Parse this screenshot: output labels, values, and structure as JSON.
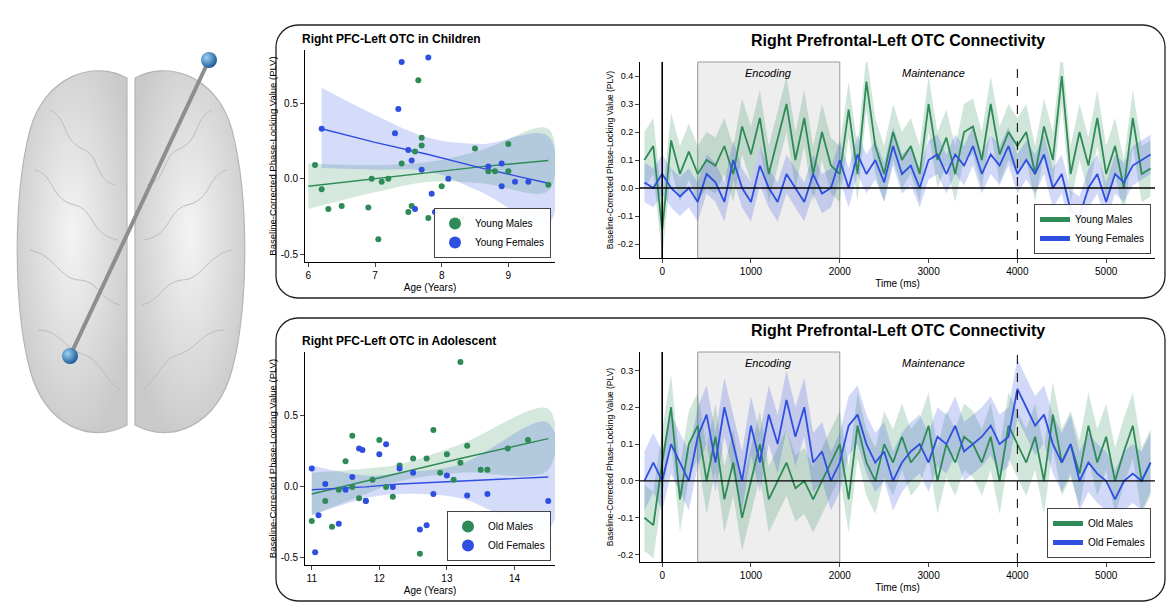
{
  "chart_data": [
    {
      "type": "scatter",
      "title": "Right PFC-Left OTC in Children",
      "x_label": "Age (Years)",
      "y_label": "Baseline-Corrected Phase-Locking Value (PLV)",
      "xlim": [
        5.95,
        9.7
      ],
      "ylim": [
        -0.55,
        0.85
      ],
      "xticks": [
        6,
        7,
        8,
        9
      ],
      "yticks": [
        -0.5,
        {
          "value": 0,
          "label": "0.0"
        },
        0.5
      ],
      "grid": false,
      "legend": "bottom right",
      "series": [
        {
          "name": "Young Males",
          "color": "#2e8b57",
          "marker": "circle",
          "x": [
            6.1,
            6.2,
            6.3,
            6.5,
            6.9,
            6.95,
            7.05,
            7.1,
            7.2,
            7.4,
            7.5,
            7.55,
            7.6,
            7.65,
            7.7,
            7.7,
            7.8,
            8.0,
            8.3,
            8.5,
            8.7,
            8.8,
            9.0,
            9.0,
            9.6
          ],
          "values": [
            0.09,
            -0.07,
            -0.2,
            -0.18,
            -0.19,
            0.0,
            -0.4,
            -0.02,
            0.0,
            0.1,
            -0.22,
            -0.18,
            0.18,
            0.65,
            0.27,
            0.22,
            -0.26,
            -0.05,
            -0.26,
            0.2,
            0.05,
            0.05,
            0.23,
            0.05,
            -0.04
          ],
          "fit": {
            "x": [
              6.0,
              7.0,
              7.8,
              8.6,
              9.6
            ],
            "values": [
              -0.05,
              0.0,
              0.04,
              0.08,
              0.12
            ],
            "lower": [
              -0.2,
              -0.09,
              -0.02,
              -0.03,
              -0.08
            ],
            "upper": [
              0.1,
              0.09,
              0.11,
              0.19,
              0.33
            ]
          }
        },
        {
          "name": "Young Females",
          "color": "#2f4fe0",
          "marker": "circle",
          "x": [
            6.2,
            7.3,
            7.35,
            7.4,
            7.5,
            7.55,
            7.6,
            7.7,
            7.8,
            7.85,
            7.9,
            8.1,
            8.7,
            8.9,
            8.9,
            9.1,
            9.3
          ],
          "values": [
            0.33,
            0.3,
            0.46,
            0.77,
            0.19,
            0.12,
            -0.2,
            0.06,
            0.8,
            -0.1,
            -0.22,
            0.0,
            0.08,
            0.1,
            -0.05,
            -0.02,
            -0.02
          ],
          "fit": {
            "x": [
              6.2,
              7.0,
              7.8,
              8.6,
              9.6
            ],
            "values": [
              0.33,
              0.24,
              0.16,
              0.07,
              -0.03
            ],
            "lower": [
              0.07,
              0.06,
              0.05,
              -0.09,
              -0.3
            ],
            "upper": [
              0.6,
              0.42,
              0.27,
              0.23,
              0.28
            ]
          }
        }
      ]
    },
    {
      "type": "line",
      "title": "Right Prefrontal-Left OTC Connectivity",
      "x_label": "Time (ms)",
      "y_label": "Baseline-Corrected Phase-Locking Value (PLV)",
      "x": [
        -200,
        -100,
        0,
        100,
        200,
        300,
        400,
        500,
        600,
        700,
        800,
        900,
        1000,
        1100,
        1200,
        1300,
        1400,
        1500,
        1600,
        1700,
        1800,
        1900,
        2000,
        2100,
        2200,
        2300,
        2400,
        2500,
        2600,
        2700,
        2800,
        2900,
        3000,
        3100,
        3200,
        3300,
        3400,
        3500,
        3600,
        3700,
        3800,
        3900,
        4000,
        4100,
        4200,
        4300,
        4400,
        4500,
        4600,
        4700,
        4800,
        4900,
        5000,
        5100,
        5200,
        5300,
        5400,
        5500
      ],
      "xlim": [
        -250,
        5550
      ],
      "ylim": [
        -0.25,
        0.45
      ],
      "xticks": [
        1000,
        2000,
        3000,
        4000,
        5000
      ],
      "x_zero_tick": 0,
      "yticks": [
        -0.2,
        -0.1,
        {
          "value": 0,
          "label": "0.0"
        },
        0.1,
        0.2,
        0.3,
        0.4
      ],
      "grid": false,
      "legend": "bottom right",
      "regions": [
        {
          "label": "Encoding",
          "x": [
            400,
            2000
          ]
        }
      ],
      "vlines": [
        {
          "x": 0,
          "line_style": "solid"
        },
        {
          "x": 4000,
          "line_style": "dashed"
        }
      ],
      "hlines": [
        0
      ],
      "annotations": [
        {
          "text": "Maintenance",
          "x": 3050
        }
      ],
      "series": [
        {
          "name": "Young Males",
          "color": "#2e8b57",
          "error": 0.1,
          "values": [
            0.1,
            0.15,
            -0.15,
            0.17,
            0.05,
            0.13,
            0.05,
            0.1,
            0.08,
            0.15,
            0.05,
            0.22,
            0.12,
            0.25,
            0.05,
            0.18,
            0.3,
            0.1,
            0.25,
            0.05,
            0.2,
            0.08,
            0.05,
            0.28,
            0.05,
            0.38,
            0.15,
            0.05,
            0.2,
            0.1,
            0.15,
            0.05,
            0.3,
            0.1,
            0.18,
            0.05,
            0.2,
            0.22,
            0.1,
            0.3,
            0.12,
            0.2,
            0.15,
            0.2,
            0.05,
            0.22,
            0.1,
            0.4,
            0.05,
            0.2,
            0.08,
            0.25,
            0.05,
            0.15,
            0.0,
            0.25,
            0.05,
            0.07
          ]
        },
        {
          "name": "Young Females",
          "color": "#2f4fe0",
          "error": 0.07,
          "values": [
            0.02,
            0.0,
            0.05,
            0.0,
            -0.03,
            0.0,
            -0.05,
            0.05,
            0.02,
            -0.05,
            0.1,
            0.0,
            -0.05,
            0.08,
            0.0,
            -0.05,
            0.05,
            0.0,
            -0.05,
            0.05,
            -0.02,
            0.0,
            0.1,
            0.0,
            0.12,
            0.05,
            0.1,
            0.02,
            0.15,
            0.05,
            0.08,
            0.0,
            0.1,
            0.12,
            0.05,
            0.12,
            0.08,
            0.15,
            0.05,
            0.12,
            0.08,
            0.15,
            0.05,
            0.1,
            0.05,
            0.12,
            0.0,
            0.05,
            -0.08,
            -0.1,
            0.0,
            0.05,
            -0.05,
            0.05,
            0.02,
            0.08,
            0.1,
            0.12
          ]
        }
      ]
    },
    {
      "type": "scatter",
      "title": "Right PFC-Left OTC in Adolescent",
      "x_label": "Age (Years)",
      "y_label": "Baseline-Corrected Phase-Locking Value (PLV)",
      "xlim": [
        10.9,
        14.6
      ],
      "ylim": [
        -0.55,
        0.95
      ],
      "xticks": [
        11,
        12,
        13,
        14
      ],
      "yticks": [
        -0.5,
        {
          "value": 0,
          "label": "0.0"
        },
        0.5
      ],
      "grid": false,
      "legend": "bottom right",
      "series": [
        {
          "name": "Old Males",
          "color": "#2e8b57",
          "marker": "circle",
          "x": [
            11.0,
            11.2,
            11.3,
            11.4,
            11.5,
            11.6,
            11.6,
            11.7,
            11.8,
            11.9,
            12.0,
            12.1,
            12.2,
            12.3,
            12.5,
            12.6,
            12.7,
            12.8,
            12.9,
            13.0,
            13.1,
            13.2,
            13.2,
            13.3,
            13.5,
            13.6,
            13.9,
            14.2
          ],
          "values": [
            -0.24,
            -0.1,
            -0.28,
            -0.02,
            0.18,
            0.36,
            0.0,
            -0.08,
            -0.1,
            0.05,
            0.33,
            0.0,
            -0.07,
            0.15,
            0.2,
            -0.47,
            0.2,
            0.4,
            0.1,
            0.23,
            0.05,
            0.88,
            0.17,
            0.29,
            0.12,
            0.12,
            0.27,
            0.33
          ],
          "fit": {
            "x": [
              11.0,
              11.8,
              12.3,
              13.2,
              14.5
            ],
            "values": [
              -0.05,
              0.04,
              0.1,
              0.2,
              0.34
            ],
            "lower": [
              -0.2,
              -0.05,
              0.04,
              0.1,
              0.12
            ],
            "upper": [
              0.1,
              0.13,
              0.16,
              0.3,
              0.55
            ]
          }
        },
        {
          "name": "Old Females",
          "color": "#2f4fe0",
          "marker": "circle",
          "x": [
            11.0,
            11.05,
            11.1,
            11.2,
            11.4,
            11.5,
            11.6,
            11.7,
            11.75,
            11.8,
            12.0,
            12.1,
            12.2,
            12.3,
            12.5,
            12.6,
            12.7,
            12.8,
            13.0,
            13.3,
            13.6,
            14.5
          ],
          "values": [
            0.13,
            -0.46,
            -0.2,
            0.02,
            -0.26,
            -0.02,
            0.07,
            0.27,
            0.26,
            -0.1,
            0.23,
            0.3,
            0.0,
            0.13,
            0.1,
            -0.3,
            -0.27,
            -0.05,
            0.08,
            -0.06,
            -0.05,
            -0.1
          ],
          "fit": {
            "x": [
              11.0,
              11.8,
              12.3,
              13.2,
              14.5
            ],
            "values": [
              -0.02,
              0.0,
              0.02,
              0.04,
              0.07
            ],
            "lower": [
              -0.2,
              -0.08,
              -0.05,
              -0.08,
              -0.3
            ],
            "upper": [
              0.15,
              0.08,
              0.1,
              0.16,
              0.45
            ]
          }
        }
      ]
    },
    {
      "type": "line",
      "title": "Right Prefrontal-Left OTC Connectivity",
      "x_label": "Time (ms)",
      "y_label": "Baseline-Corrected Phase-Locking Value (PLV)",
      "x": [
        -200,
        -100,
        0,
        100,
        200,
        300,
        400,
        500,
        600,
        700,
        800,
        900,
        1000,
        1100,
        1200,
        1300,
        1400,
        1500,
        1600,
        1700,
        1800,
        1900,
        2000,
        2100,
        2200,
        2300,
        2400,
        2500,
        2600,
        2700,
        2800,
        2900,
        3000,
        3100,
        3200,
        3300,
        3400,
        3500,
        3600,
        3700,
        3800,
        3900,
        4000,
        4100,
        4200,
        4300,
        4400,
        4500,
        4600,
        4700,
        4800,
        4900,
        5000,
        5100,
        5200,
        5300,
        5400,
        5500
      ],
      "xlim": [
        -250,
        5550
      ],
      "ylim": [
        -0.22,
        0.35
      ],
      "xticks": [
        1000,
        2000,
        3000,
        4000,
        5000
      ],
      "x_zero_tick": 0,
      "yticks": [
        -0.2,
        -0.1,
        {
          "value": 0,
          "label": "0.0"
        },
        0.1,
        0.2,
        0.3
      ],
      "grid": false,
      "legend": "bottom right",
      "regions": [
        {
          "label": "Encoding",
          "x": [
            400,
            2000
          ]
        }
      ],
      "vlines": [
        {
          "x": 0,
          "line_style": "solid"
        },
        {
          "x": 4000,
          "line_style": "dashed"
        }
      ],
      "hlines": [
        0
      ],
      "annotations": [
        {
          "text": "Maintenance",
          "x": 3050
        }
      ],
      "series": [
        {
          "name": "Old Males",
          "color": "#2e8b57",
          "error": 0.09,
          "values": [
            -0.1,
            -0.12,
            0.05,
            0.2,
            -0.05,
            0.1,
            0.15,
            0.0,
            0.12,
            -0.05,
            0.05,
            -0.1,
            0.0,
            0.1,
            -0.05,
            0.0,
            0.05,
            -0.02,
            0.0,
            -0.05,
            0.0,
            0.05,
            0.1,
            -0.05,
            0.15,
            0.05,
            0.0,
            0.1,
            0.05,
            0.12,
            0.05,
            0.08,
            0.15,
            0.0,
            0.1,
            0.05,
            0.12,
            0.1,
            0.05,
            0.12,
            0.0,
            0.15,
            0.1,
            0.05,
            0.12,
            0.0,
            0.18,
            0.05,
            0.1,
            0.02,
            0.15,
            0.05,
            0.12,
            0.0,
            0.08,
            0.15,
            0.0,
            0.05
          ]
        },
        {
          "name": "Old Females",
          "color": "#2f4fe0",
          "error": 0.08,
          "values": [
            0.0,
            0.05,
            0.0,
            0.1,
            0.05,
            0.0,
            0.12,
            0.18,
            0.05,
            0.2,
            0.1,
            0.0,
            0.15,
            0.05,
            0.18,
            0.1,
            0.22,
            0.12,
            0.2,
            0.05,
            0.08,
            0.0,
            0.05,
            0.15,
            0.18,
            0.1,
            0.05,
            0.08,
            0.0,
            0.05,
            0.08,
            0.1,
            0.05,
            0.12,
            0.1,
            0.15,
            0.08,
            0.1,
            0.12,
            0.15,
            0.1,
            0.12,
            0.25,
            0.2,
            0.15,
            0.18,
            0.1,
            0.05,
            0.1,
            0.0,
            0.05,
            0.02,
            0.0,
            -0.05,
            0.0,
            0.02,
            0.0,
            0.05
          ]
        }
      ]
    }
  ]
}
